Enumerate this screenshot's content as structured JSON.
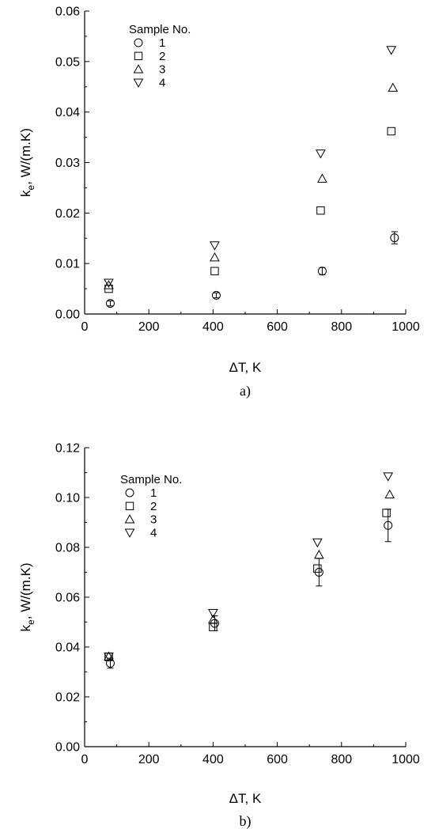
{
  "chart_data": [
    {
      "type": "scatter",
      "panel_label": "a)",
      "xlabel": "ΔT, K",
      "ylabel_main": "k",
      "ylabel_sub": "e",
      "ylabel_rest": ", W/(m.K)",
      "xlim": [
        0,
        1000
      ],
      "ylim": [
        0,
        0.06
      ],
      "xticks": [
        0,
        200,
        400,
        600,
        800,
        1000
      ],
      "xtick_labels": [
        "0",
        "200",
        "400",
        "600",
        "800",
        "1000"
      ],
      "yticks": [
        0,
        0.01,
        0.02,
        0.03,
        0.04,
        0.05,
        0.06
      ],
      "ytick_labels": [
        "0.00",
        "0.01",
        "0.02",
        "0.03",
        "0.04",
        "0.05",
        "0.06"
      ],
      "grid": false,
      "legend_title": "Sample No.",
      "legend_position": "top-left",
      "series": [
        {
          "name": "1",
          "marker": "circle",
          "points": [
            {
              "x": 80,
              "y": 0.0021,
              "err": 0.0005
            },
            {
              "x": 410,
              "y": 0.0037,
              "err": 0.0005
            },
            {
              "x": 740,
              "y": 0.0085,
              "err": 0.0007
            },
            {
              "x": 965,
              "y": 0.0151,
              "err": 0.0012
            }
          ]
        },
        {
          "name": "2",
          "marker": "square",
          "points": [
            {
              "x": 75,
              "y": 0.005
            },
            {
              "x": 405,
              "y": 0.0085
            },
            {
              "x": 735,
              "y": 0.0205
            },
            {
              "x": 955,
              "y": 0.0362
            }
          ]
        },
        {
          "name": "3",
          "marker": "triangle-up",
          "points": [
            {
              "x": 75,
              "y": 0.0057
            },
            {
              "x": 405,
              "y": 0.0112
            },
            {
              "x": 740,
              "y": 0.0268
            },
            {
              "x": 960,
              "y": 0.0448
            }
          ]
        },
        {
          "name": "4",
          "marker": "triangle-down",
          "points": [
            {
              "x": 75,
              "y": 0.0062
            },
            {
              "x": 405,
              "y": 0.0136
            },
            {
              "x": 735,
              "y": 0.0318
            },
            {
              "x": 955,
              "y": 0.0523
            }
          ]
        }
      ]
    },
    {
      "type": "scatter",
      "panel_label": "b)",
      "xlabel": "ΔT, K",
      "ylabel_main": "k",
      "ylabel_sub": "e",
      "ylabel_rest": ", W/(m.K)",
      "xlim": [
        0,
        1000
      ],
      "ylim": [
        0,
        0.12
      ],
      "xticks": [
        0,
        200,
        400,
        600,
        800,
        1000
      ],
      "xtick_labels": [
        "0",
        "200",
        "400",
        "600",
        "800",
        "1000"
      ],
      "yticks": [
        0,
        0.02,
        0.04,
        0.06,
        0.08,
        0.1,
        0.12
      ],
      "ytick_labels": [
        "0.00",
        "0.02",
        "0.04",
        "0.06",
        "0.08",
        "0.10",
        "0.12"
      ],
      "grid": false,
      "legend_title": "Sample No.",
      "legend_position": "top-left",
      "series": [
        {
          "name": "1",
          "marker": "circle",
          "points": [
            {
              "x": 80,
              "y": 0.0335,
              "err": 0.002
            },
            {
              "x": 405,
              "y": 0.0495,
              "err": 0.003
            },
            {
              "x": 730,
              "y": 0.07,
              "err": 0.0055
            },
            {
              "x": 945,
              "y": 0.0888,
              "err": 0.0065
            }
          ]
        },
        {
          "name": "2",
          "marker": "square",
          "points": [
            {
              "x": 75,
              "y": 0.036
            },
            {
              "x": 400,
              "y": 0.048
            },
            {
              "x": 725,
              "y": 0.0715
            },
            {
              "x": 940,
              "y": 0.0938
            }
          ]
        },
        {
          "name": "3",
          "marker": "triangle-up",
          "points": [
            {
              "x": 75,
              "y": 0.0362
            },
            {
              "x": 400,
              "y": 0.051
            },
            {
              "x": 730,
              "y": 0.077
            },
            {
              "x": 950,
              "y": 0.1012
            }
          ]
        },
        {
          "name": "4",
          "marker": "triangle-down",
          "points": [
            {
              "x": 75,
              "y": 0.0362
            },
            {
              "x": 400,
              "y": 0.0537
            },
            {
              "x": 725,
              "y": 0.082
            },
            {
              "x": 945,
              "y": 0.1085
            }
          ]
        }
      ]
    }
  ]
}
